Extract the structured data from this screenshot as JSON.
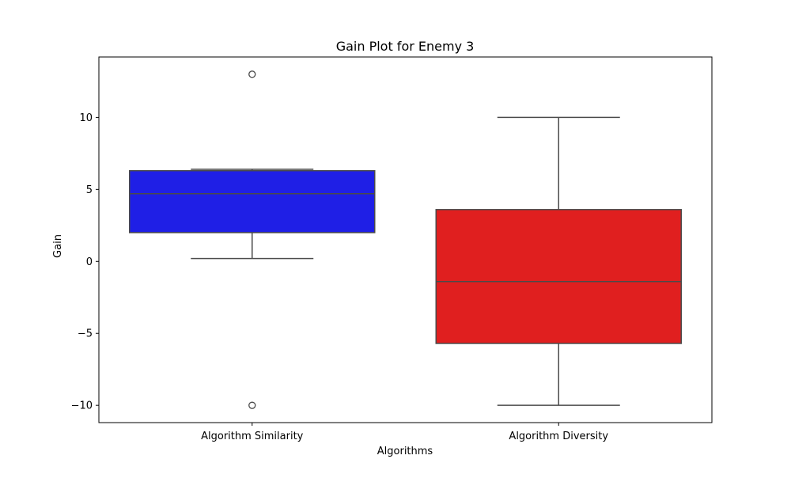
{
  "chart_data": {
    "type": "box",
    "title": "Gain Plot for Enemy 3",
    "xlabel": "Algorithms",
    "ylabel": "Gain",
    "ylim": [
      -11.2,
      14.2
    ],
    "yticks": [
      -10,
      -5,
      0,
      5,
      10
    ],
    "ytick_labels": [
      "−10",
      "−5",
      "0",
      "5",
      "10"
    ],
    "grid": false,
    "categories": [
      "Algorithm Similarity",
      "Algorithm Diversity"
    ],
    "boxes": [
      {
        "category": "Algorithm Similarity",
        "color": "#1f1fe6",
        "whisker_low": 0.2,
        "q1": 2.0,
        "median": 4.7,
        "q3": 6.3,
        "whisker_high": 6.4,
        "outliers": [
          13.0,
          -10.0
        ]
      },
      {
        "category": "Algorithm Diversity",
        "color": "#e01f1f",
        "whisker_low": -10.0,
        "q1": -5.7,
        "median": -1.4,
        "q3": 3.6,
        "whisker_high": 10.0,
        "outliers": []
      }
    ]
  }
}
